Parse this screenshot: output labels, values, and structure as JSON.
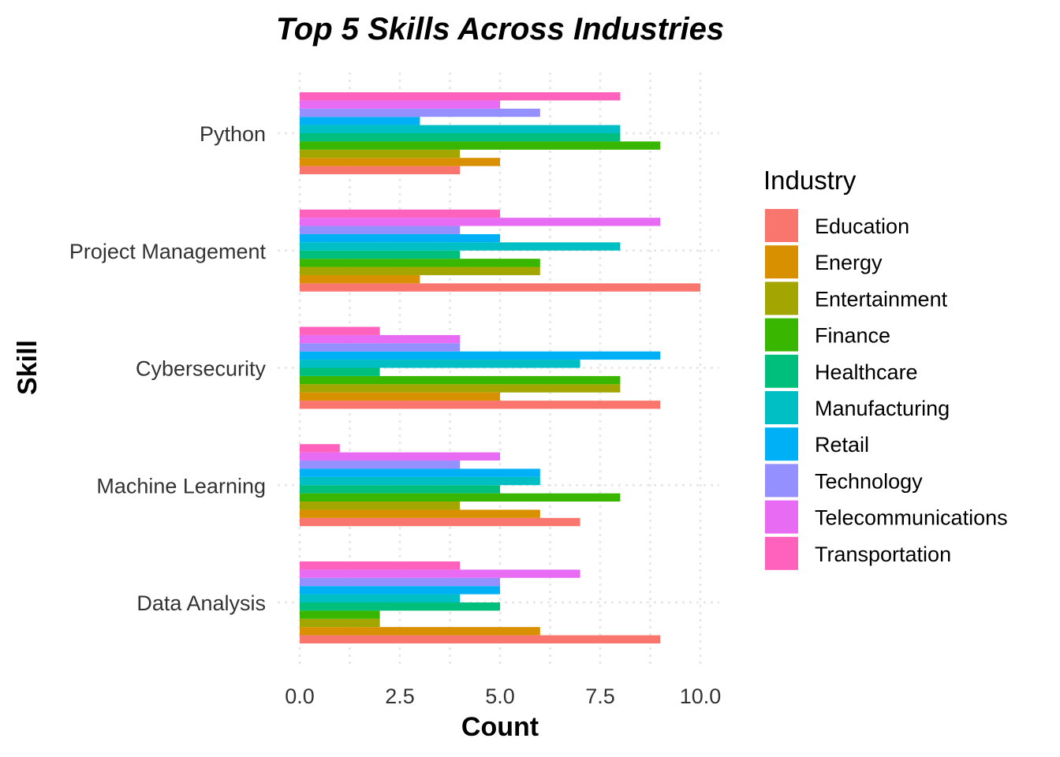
{
  "chart_data": {
    "type": "bar",
    "orientation": "horizontal",
    "title": "Top 5 Skills Across Industries",
    "xlabel": "Count",
    "ylabel": "Skill",
    "xlim": [
      0,
      10
    ],
    "x_ticks": [
      "0.0",
      "2.5",
      "5.0",
      "7.5",
      "10.0"
    ],
    "x_tick_values": [
      0,
      2.5,
      5,
      7.5,
      10
    ],
    "categories": [
      "Python",
      "Project Management",
      "Cybersecurity",
      "Machine Learning",
      "Data Analysis"
    ],
    "legend_title": "Industry",
    "legend_position": "right",
    "grid": true,
    "series": [
      {
        "name": "Education",
        "color": "#F8766D",
        "values": [
          4,
          10,
          9,
          7,
          9
        ]
      },
      {
        "name": "Energy",
        "color": "#D89000",
        "values": [
          5,
          3,
          5,
          6,
          6
        ]
      },
      {
        "name": "Entertainment",
        "color": "#A3A500",
        "values": [
          4,
          6,
          8,
          4,
          2
        ]
      },
      {
        "name": "Finance",
        "color": "#39B600",
        "values": [
          9,
          6,
          8,
          8,
          2
        ]
      },
      {
        "name": "Healthcare",
        "color": "#00BF7D",
        "values": [
          8,
          4,
          2,
          5,
          5
        ]
      },
      {
        "name": "Manufacturing",
        "color": "#00BFC4",
        "values": [
          8,
          8,
          7,
          6,
          4
        ]
      },
      {
        "name": "Retail",
        "color": "#00B0F6",
        "values": [
          3,
          5,
          9,
          6,
          5
        ]
      },
      {
        "name": "Technology",
        "color": "#9590FF",
        "values": [
          6,
          4,
          4,
          4,
          5
        ]
      },
      {
        "name": "Telecommunications",
        "color": "#E76BF3",
        "values": [
          5,
          9,
          4,
          5,
          7
        ]
      },
      {
        "name": "Transportation",
        "color": "#FF62BC",
        "values": [
          8,
          5,
          2,
          1,
          4
        ]
      }
    ]
  }
}
